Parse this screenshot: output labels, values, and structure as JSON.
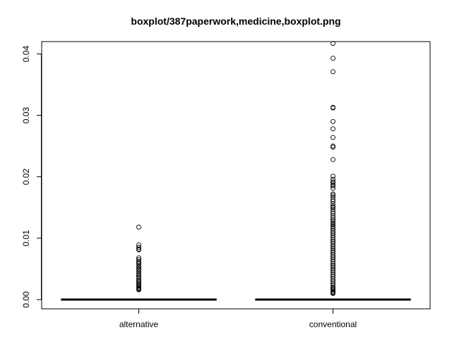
{
  "chart_data": {
    "type": "boxplot",
    "title": "boxplot/387paperwork,medicine,boxplot.png",
    "xlabel": "",
    "ylabel": "",
    "ylim": [
      -0.0015,
      0.042
    ],
    "yticks": [
      0.0,
      0.01,
      0.02,
      0.03,
      0.04
    ],
    "ytick_labels": [
      "0.00",
      "0.01",
      "0.02",
      "0.03",
      "0.04"
    ],
    "grid": false,
    "categories": [
      "alternative",
      "conventional"
    ],
    "boxes": [
      {
        "name": "alternative",
        "median": 0.0,
        "q1": 0.0,
        "q3": 0.0,
        "whisker_low": 0.0,
        "whisker_high": 0.0,
        "outliers": [
          0.0118,
          0.0089,
          0.0085,
          0.0082,
          0.0081,
          0.0068,
          0.0065,
          0.0062,
          0.006,
          0.0058,
          0.0055,
          0.0053,
          0.005,
          0.0048,
          0.0045,
          0.0042,
          0.004,
          0.0037,
          0.0035,
          0.0032,
          0.003,
          0.0028,
          0.0026,
          0.0024,
          0.0022,
          0.002,
          0.0018,
          0.0017,
          0.0016
        ]
      },
      {
        "name": "conventional",
        "median": 0.0,
        "q1": 0.0,
        "q3": 0.0,
        "whisker_low": 0.0,
        "whisker_high": 0.0,
        "outliers": [
          0.0417,
          0.0393,
          0.0371,
          0.0313,
          0.0312,
          0.029,
          0.0278,
          0.0264,
          0.025,
          0.0248,
          0.0228,
          0.0201,
          0.0196,
          0.0192,
          0.019,
          0.0187,
          0.0185,
          0.0181,
          0.0172,
          0.017,
          0.0167,
          0.0163,
          0.016,
          0.0156,
          0.0152,
          0.015,
          0.0147,
          0.0143,
          0.014,
          0.0136,
          0.0133,
          0.013,
          0.0127,
          0.0124,
          0.0122,
          0.0119,
          0.0116,
          0.0113,
          0.011,
          0.0107,
          0.0104,
          0.0101,
          0.0098,
          0.0095,
          0.0092,
          0.0089,
          0.0086,
          0.0083,
          0.008,
          0.0077,
          0.0074,
          0.0071,
          0.0068,
          0.0065,
          0.0062,
          0.0059,
          0.0056,
          0.0053,
          0.005,
          0.0047,
          0.0044,
          0.0041,
          0.0038,
          0.0035,
          0.0032,
          0.0029,
          0.0026,
          0.0023,
          0.002,
          0.0018,
          0.0016,
          0.0014,
          0.0012,
          0.0011,
          0.001
        ]
      }
    ]
  }
}
